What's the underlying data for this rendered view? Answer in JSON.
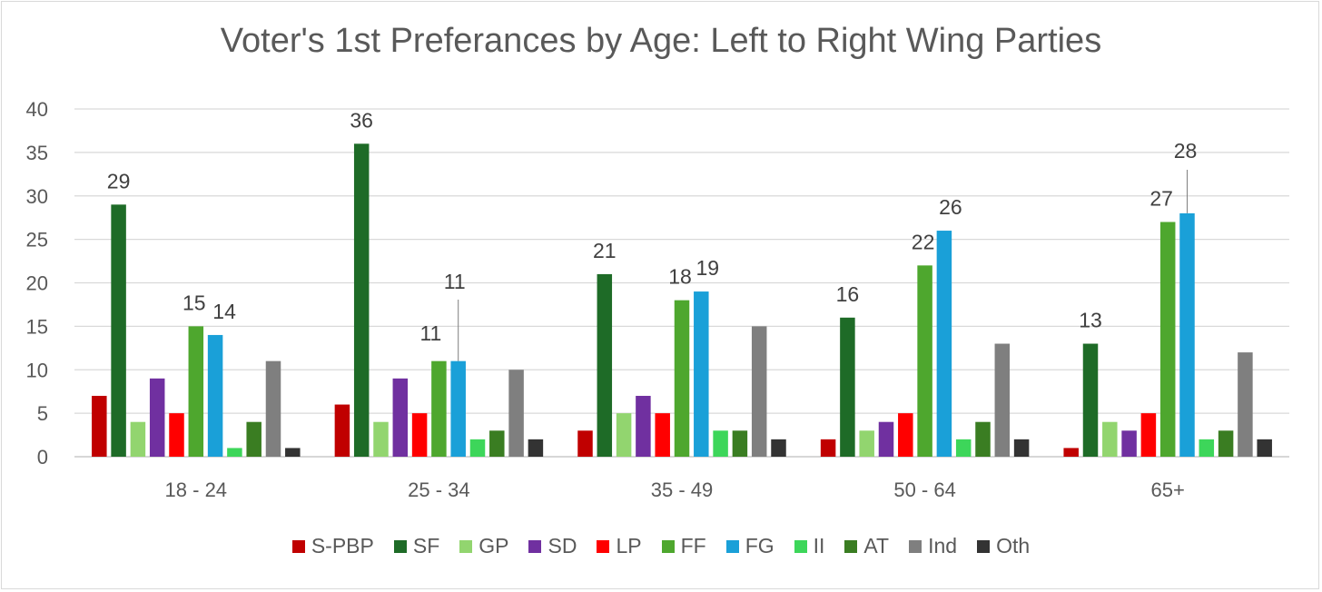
{
  "chart_data": {
    "type": "bar",
    "title": "Voter's 1st Preferances by Age: Left to Right Wing Parties",
    "categories": [
      "18 - 24",
      "25 - 34",
      "35 - 49",
      "50 - 64",
      "65+"
    ],
    "ylim": [
      0,
      40
    ],
    "yticks": [
      "0",
      "5",
      "10",
      "15",
      "20",
      "25",
      "30",
      "35",
      "40"
    ],
    "grid": true,
    "legend_position": "bottom",
    "series": [
      {
        "name": "S-PBP",
        "color": "#c00000",
        "values": [
          7,
          6,
          3,
          2,
          1
        ]
      },
      {
        "name": "SF",
        "color": "#1e6b27",
        "values": [
          29,
          36,
          21,
          16,
          13
        ]
      },
      {
        "name": "GP",
        "color": "#92d56f",
        "values": [
          4,
          4,
          5,
          3,
          4
        ]
      },
      {
        "name": "SD",
        "color": "#7030a0",
        "values": [
          9,
          9,
          7,
          4,
          3
        ]
      },
      {
        "name": "LP",
        "color": "#ff0000",
        "values": [
          5,
          5,
          5,
          5,
          5
        ]
      },
      {
        "name": "FF",
        "color": "#4ea72e",
        "values": [
          15,
          11,
          18,
          22,
          27
        ]
      },
      {
        "name": "FG",
        "color": "#1aa0d8",
        "values": [
          14,
          11,
          19,
          26,
          28
        ]
      },
      {
        "name": "II",
        "color": "#3dd65a",
        "values": [
          1,
          2,
          3,
          2,
          2
        ]
      },
      {
        "name": "AT",
        "color": "#3a7d22",
        "values": [
          4,
          3,
          3,
          4,
          3
        ]
      },
      {
        "name": "Ind",
        "color": "#7f7f7f",
        "values": [
          11,
          10,
          15,
          13,
          12
        ]
      },
      {
        "name": "Oth",
        "color": "#333333",
        "values": [
          1,
          2,
          2,
          2,
          2
        ]
      }
    ],
    "data_labels": {
      "SF": [
        "29",
        "36",
        "21",
        "16",
        "13"
      ],
      "FF": [
        "15",
        "11",
        "18",
        "22",
        "27"
      ],
      "FG": [
        "14",
        "11",
        "19",
        "26",
        "28"
      ]
    }
  }
}
